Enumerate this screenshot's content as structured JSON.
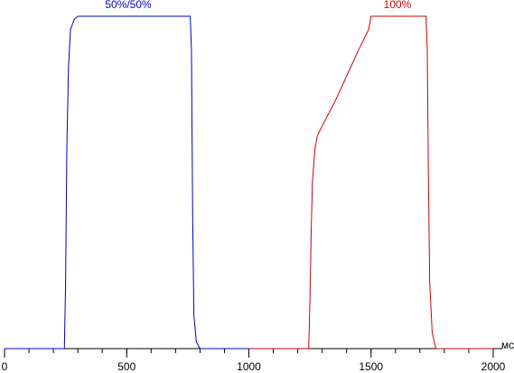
{
  "chart_data": {
    "type": "line",
    "x_label": "мс",
    "xlim": [
      0,
      2000
    ],
    "xticks": [
      0,
      500,
      1000,
      1500,
      2000
    ],
    "xticks_minor": [
      0,
      100,
      200,
      300,
      400,
      500,
      600,
      700,
      800,
      900,
      1000,
      1100,
      1200,
      1300,
      1400,
      1500,
      1600,
      1700,
      1800,
      1900,
      2000
    ],
    "ylim": [
      0,
      100
    ],
    "series": [
      {
        "name": "50%/50%",
        "color": "#0000c0",
        "x": [
          0,
          245,
          250,
          255,
          262,
          270,
          285,
          300,
          760,
          765,
          770,
          775,
          785,
          800,
          1000
        ],
        "values": [
          0,
          0,
          20,
          60,
          85,
          96,
          99,
          100,
          100,
          90,
          40,
          10,
          2,
          0,
          0
        ]
      },
      {
        "name": "100%",
        "color": "#d00000",
        "x": [
          1000,
          1245,
          1250,
          1255,
          1260,
          1270,
          1280,
          1300,
          1350,
          1400,
          1450,
          1490,
          1500,
          1725,
          1730,
          1735,
          1740,
          1750,
          1765,
          2000
        ],
        "values": [
          0,
          0,
          15,
          35,
          50,
          60,
          64,
          67,
          74,
          82,
          90,
          96,
          100,
          100,
          90,
          50,
          20,
          5,
          0,
          0
        ]
      }
    ]
  }
}
